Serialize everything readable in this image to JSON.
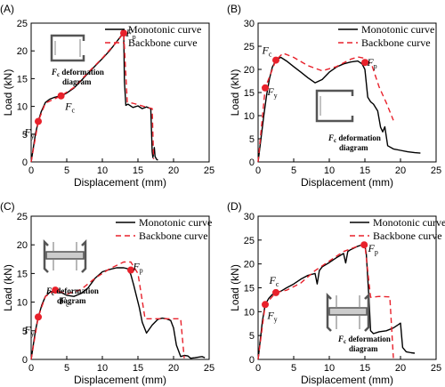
{
  "colors": {
    "monotonic": "#000000",
    "backbone": "#e8212b",
    "marker": "#e8212b",
    "inset": "#555555"
  },
  "legend": {
    "monotonic": "Monotonic curve",
    "backbone": "Backbone curve"
  },
  "inset_caption": {
    "line1": "F",
    "line1_sub": "c",
    "line1_rest": " deformation",
    "line2": "diagram"
  },
  "chart_data": [
    {
      "panel": "(A)",
      "type": "line",
      "xlabel": "Displacement (mm)",
      "ylabel": "Load (kN)",
      "xlim": [
        0,
        25
      ],
      "ylim": [
        0,
        25
      ],
      "xticks": [
        0,
        5,
        10,
        15,
        20,
        25
      ],
      "yticks": [
        0,
        5,
        10,
        15,
        20,
        25
      ],
      "series": [
        {
          "name": "Monotonic curve",
          "style": "solid",
          "x": [
            0,
            0.3,
            0.6,
            1.0,
            1.4,
            2.0,
            2.6,
            3.2,
            4.2,
            5.0,
            6.0,
            7.0,
            8.0,
            9.0,
            10.0,
            11.0,
            11.8,
            12.4,
            12.8,
            13.0,
            13.1,
            13.3,
            13.6,
            14.3,
            15.0,
            15.6,
            16.2,
            16.8,
            17.0,
            17.1,
            17.3,
            17.4,
            17.6,
            17.8
          ],
          "y": [
            0,
            2.5,
            5.0,
            7.3,
            9.0,
            10.7,
            11.3,
            11.6,
            11.9,
            12.4,
            13.3,
            14.6,
            16.0,
            17.3,
            18.6,
            20.0,
            21.3,
            22.3,
            23.0,
            23.2,
            14.5,
            10.2,
            10.4,
            9.8,
            10.1,
            9.6,
            9.9,
            9.6,
            1.8,
            0.8,
            2.6,
            1.0,
            0.5,
            0.3
          ]
        },
        {
          "name": "Backbone curve",
          "style": "dashed",
          "x": [
            0,
            1.0,
            2.0,
            4.2,
            6.0,
            8.0,
            10.0,
            12.0,
            13.0,
            13.5,
            14.5,
            15.8,
            17.0,
            17.2
          ],
          "y": [
            0,
            7.3,
            10.6,
            11.9,
            13.4,
            16.1,
            18.7,
            21.6,
            23.2,
            10.8,
            10.5,
            10.0,
            9.6,
            0.5
          ]
        }
      ],
      "points": [
        {
          "label": "F",
          "sub": "y",
          "x": 1.0,
          "y": 7.3
        },
        {
          "label": "F",
          "sub": "c",
          "x": 4.2,
          "y": 11.9
        },
        {
          "label": "F",
          "sub": "p",
          "x": 13.0,
          "y": 23.2
        }
      ]
    },
    {
      "panel": "(B)",
      "type": "line",
      "xlabel": "Displacement (mm)",
      "ylabel": "Load (kN)",
      "xlim": [
        0,
        25
      ],
      "ylim": [
        0,
        30
      ],
      "xticks": [
        0,
        5,
        10,
        15,
        20,
        25
      ],
      "yticks": [
        0,
        5,
        10,
        15,
        20,
        25,
        30
      ],
      "series": [
        {
          "name": "Monotonic curve",
          "style": "solid",
          "x": [
            0,
            0.4,
            0.8,
            1.2,
            1.6,
            2.0,
            2.6,
            3.2,
            4.0,
            5.0,
            6.0,
            7.0,
            8.0,
            9.0,
            10.0,
            11.0,
            12.0,
            13.0,
            14.0,
            14.6,
            15.0,
            15.4,
            15.8,
            16.2,
            16.8,
            17.2,
            17.5,
            17.8,
            18.2,
            19.0,
            20.0,
            21.0,
            22.0,
            22.8
          ],
          "y": [
            0,
            5.0,
            10.0,
            14.5,
            18.0,
            20.5,
            22.2,
            22.6,
            21.8,
            20.6,
            19.4,
            18.2,
            17.1,
            17.8,
            19.4,
            20.5,
            21.2,
            21.6,
            21.8,
            21.2,
            20.0,
            14.0,
            13.0,
            12.5,
            11.0,
            7.5,
            6.5,
            7.6,
            3.5,
            2.8,
            2.5,
            2.2,
            2.0,
            1.9
          ]
        },
        {
          "name": "Backbone curve",
          "style": "dashed",
          "x": [
            0,
            1.0,
            2.5,
            3.5,
            5.0,
            7.0,
            9.0,
            11.0,
            13.0,
            14.0,
            15.0,
            16.0,
            17.0,
            18.0,
            19.0
          ],
          "y": [
            0,
            16.0,
            22.0,
            23.5,
            22.6,
            20.8,
            19.7,
            20.6,
            22.2,
            22.7,
            22.4,
            20.8,
            16.2,
            12.8,
            9.0
          ]
        }
      ],
      "points": [
        {
          "label": "F",
          "sub": "y",
          "x": 1.0,
          "y": 16.0
        },
        {
          "label": "F",
          "sub": "c",
          "x": 2.5,
          "y": 22.0
        },
        {
          "label": "F",
          "sub": "p",
          "x": 15.0,
          "y": 21.5
        }
      ]
    },
    {
      "panel": "(C)",
      "type": "line",
      "xlabel": "Displacement (mm)",
      "ylabel": "Load (kN)",
      "xlim": [
        0,
        25
      ],
      "ylim": [
        0,
        25
      ],
      "xticks": [
        0,
        5,
        10,
        15,
        20,
        25
      ],
      "yticks": [
        0,
        5,
        10,
        15,
        20,
        25
      ],
      "series": [
        {
          "name": "Monotonic curve",
          "style": "solid",
          "x": [
            0,
            0.3,
            0.6,
            1.0,
            1.5,
            2.0,
            2.7,
            3.4,
            4.2,
            5.0,
            6.0,
            7.0,
            8.0,
            9.0,
            10.0,
            11.0,
            12.0,
            13.0,
            13.6,
            14.0,
            14.4,
            14.8,
            15.2,
            15.6,
            16.2,
            17.0,
            17.8,
            18.4,
            19.0,
            19.6,
            20.0,
            20.4,
            21.0,
            21.5,
            22.0,
            22.4,
            23.0,
            24.0,
            24.4
          ],
          "y": [
            0,
            2.5,
            5.0,
            7.4,
            9.5,
            11.0,
            11.8,
            12.0,
            11.7,
            11.2,
            11.0,
            11.5,
            12.5,
            14.2,
            15.3,
            15.7,
            16.0,
            16.0,
            15.8,
            14.8,
            13.0,
            11.0,
            9.0,
            6.5,
            4.6,
            6.0,
            7.0,
            7.2,
            7.1,
            6.8,
            5.5,
            2.5,
            0.5,
            0.7,
            0.6,
            0.2,
            0.3,
            0.5,
            0.3
          ]
        },
        {
          "name": "Backbone curve",
          "style": "dashed",
          "x": [
            0,
            1.0,
            2.0,
            3.4,
            5.0,
            7.0,
            9.0,
            11.0,
            13.0,
            14.0,
            15.0,
            16.0,
            18.0,
            20.0,
            21.0,
            21.5
          ],
          "y": [
            0,
            7.4,
            11.0,
            12.1,
            11.4,
            12.2,
            14.2,
            15.8,
            17.0,
            17.0,
            15.0,
            7.1,
            7.1,
            7.1,
            7.1,
            0.2
          ]
        }
      ],
      "points": [
        {
          "label": "F",
          "sub": "y",
          "x": 1.0,
          "y": 7.4
        },
        {
          "label": "F",
          "sub": "c",
          "x": 3.4,
          "y": 12.1
        },
        {
          "label": "F",
          "sub": "p",
          "x": 14.0,
          "y": 15.6
        }
      ]
    },
    {
      "panel": "(D)",
      "type": "line",
      "xlabel": "Displacement (mm)",
      "ylabel": "Load (kN)",
      "xlim": [
        0,
        25
      ],
      "ylim": [
        0,
        30
      ],
      "xticks": [
        0,
        5,
        10,
        15,
        20,
        25
      ],
      "yticks": [
        0,
        5,
        10,
        15,
        20,
        25,
        30
      ],
      "series": [
        {
          "name": "Monotonic curve",
          "style": "solid",
          "x": [
            0,
            0.3,
            0.6,
            1.0,
            1.5,
            2.0,
            2.6,
            3.2,
            4.0,
            5.0,
            6.0,
            7.0,
            8.0,
            8.3,
            8.6,
            9.0,
            10.0,
            11.0,
            12.0,
            12.3,
            12.6,
            13.0,
            14.0,
            14.6,
            15.0,
            15.2,
            15.4,
            15.6,
            15.8,
            16.2,
            17.0,
            18.0,
            19.0,
            19.6,
            20.0,
            20.3,
            20.8,
            21.5,
            22.0
          ],
          "y": [
            0,
            4.0,
            8.0,
            11.5,
            12.8,
            13.6,
            14.0,
            14.3,
            15.0,
            15.8,
            16.8,
            17.6,
            18.0,
            15.8,
            18.6,
            19.4,
            20.3,
            21.3,
            22.2,
            20.2,
            22.6,
            23.0,
            23.7,
            24.0,
            23.9,
            22.0,
            17.0,
            12.0,
            6.0,
            5.4,
            5.8,
            6.0,
            6.6,
            7.2,
            7.6,
            2.5,
            1.6,
            1.4,
            1.3
          ]
        },
        {
          "name": "Backbone curve",
          "style": "dashed",
          "x": [
            0,
            1.0,
            2.5,
            4.0,
            6.0,
            8.0,
            10.0,
            12.0,
            14.5,
            15.0,
            15.8,
            17.0,
            18.5,
            19.0
          ],
          "y": [
            0,
            11.5,
            14.0,
            14.5,
            16.0,
            18.6,
            20.6,
            22.6,
            24.0,
            24.0,
            13.0,
            13.2,
            13.1,
            0.3
          ]
        }
      ],
      "points": [
        {
          "label": "F",
          "sub": "y",
          "x": 1.0,
          "y": 11.5
        },
        {
          "label": "F",
          "sub": "c",
          "x": 2.5,
          "y": 14.0
        },
        {
          "label": "F",
          "sub": "p",
          "x": 14.9,
          "y": 24.0
        }
      ]
    }
  ]
}
